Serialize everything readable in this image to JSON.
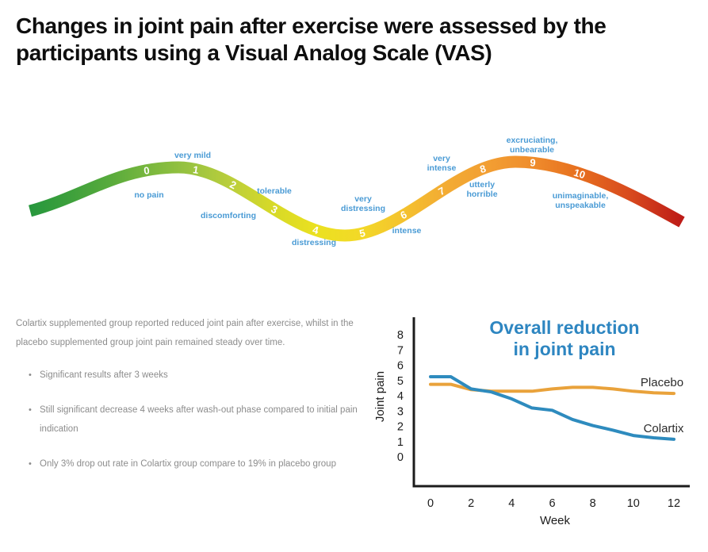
{
  "title": "Changes in joint pain after exercise were assessed by the participants using a Visual Analog Scale (VAS)",
  "vas_scale": {
    "points": [
      {
        "value": "0",
        "label": "no pain"
      },
      {
        "value": "1",
        "label": "very mild"
      },
      {
        "value": "2",
        "label": "discomforting"
      },
      {
        "value": "3",
        "label": "tolerable"
      },
      {
        "value": "4",
        "label": "distressing"
      },
      {
        "value": "5",
        "label": "very distressing"
      },
      {
        "value": "6",
        "label": "intense"
      },
      {
        "value": "7",
        "label": "very intense"
      },
      {
        "value": "8",
        "label": "utterly horrible"
      },
      {
        "value": "9",
        "label": "excruciating, unbearable"
      },
      {
        "value": "10",
        "label": "unimaginable, unspeakable"
      }
    ],
    "label_color": "#4A9BD5",
    "number_color": "#FFFFFF",
    "gradient_colors": [
      "#27973D",
      "#3DA03C",
      "#57AA3C",
      "#78B73E",
      "#9CC440",
      "#BCCF3B",
      "#D6D928",
      "#EBE120",
      "#F3D828",
      "#F4C32E",
      "#F3AD33",
      "#F29F33",
      "#EF8D2C",
      "#E7701F",
      "#D84A1E",
      "#BD1B17"
    ]
  },
  "left_panel": {
    "intro": "Colartix supplemented group reported reduced joint pain after exercise, whilst in the placebo supplemented group joint pain remained steady over time.",
    "bullets": [
      "Significant results after 3 weeks",
      "Still significant decrease 4 weeks after wash-out phase compared to initial pain indication",
      "Only 3% drop out rate in Colartix group compare to 19% in placebo group"
    ]
  },
  "chart_data": {
    "type": "line",
    "title": "Overall reduction in joint pain",
    "title_color": "#2E86C1",
    "xlabel": "Week",
    "ylabel": "Joint pain",
    "x": [
      0,
      1,
      2,
      3,
      4,
      5,
      6,
      7,
      8,
      9,
      10,
      11,
      12
    ],
    "x_ticks": [
      0,
      2,
      4,
      6,
      8,
      10,
      12
    ],
    "y_ticks": [
      0,
      1,
      2,
      3,
      4,
      5,
      6,
      7,
      8
    ],
    "ylim": [
      0,
      8
    ],
    "xlim": [
      0,
      12
    ],
    "grid": false,
    "legend_position": "inline-right",
    "series": [
      {
        "name": "Placebo",
        "color": "#E9A23B",
        "values": [
          4.8,
          4.8,
          4.45,
          4.35,
          4.35,
          4.35,
          4.5,
          4.6,
          4.6,
          4.5,
          4.35,
          4.25,
          4.2
        ]
      },
      {
        "name": "Colartix",
        "color": "#2E8BBE",
        "values": [
          5.3,
          5.3,
          4.5,
          4.3,
          3.85,
          3.25,
          3.1,
          2.5,
          2.1,
          1.8,
          1.45,
          1.3,
          1.2
        ]
      }
    ]
  }
}
